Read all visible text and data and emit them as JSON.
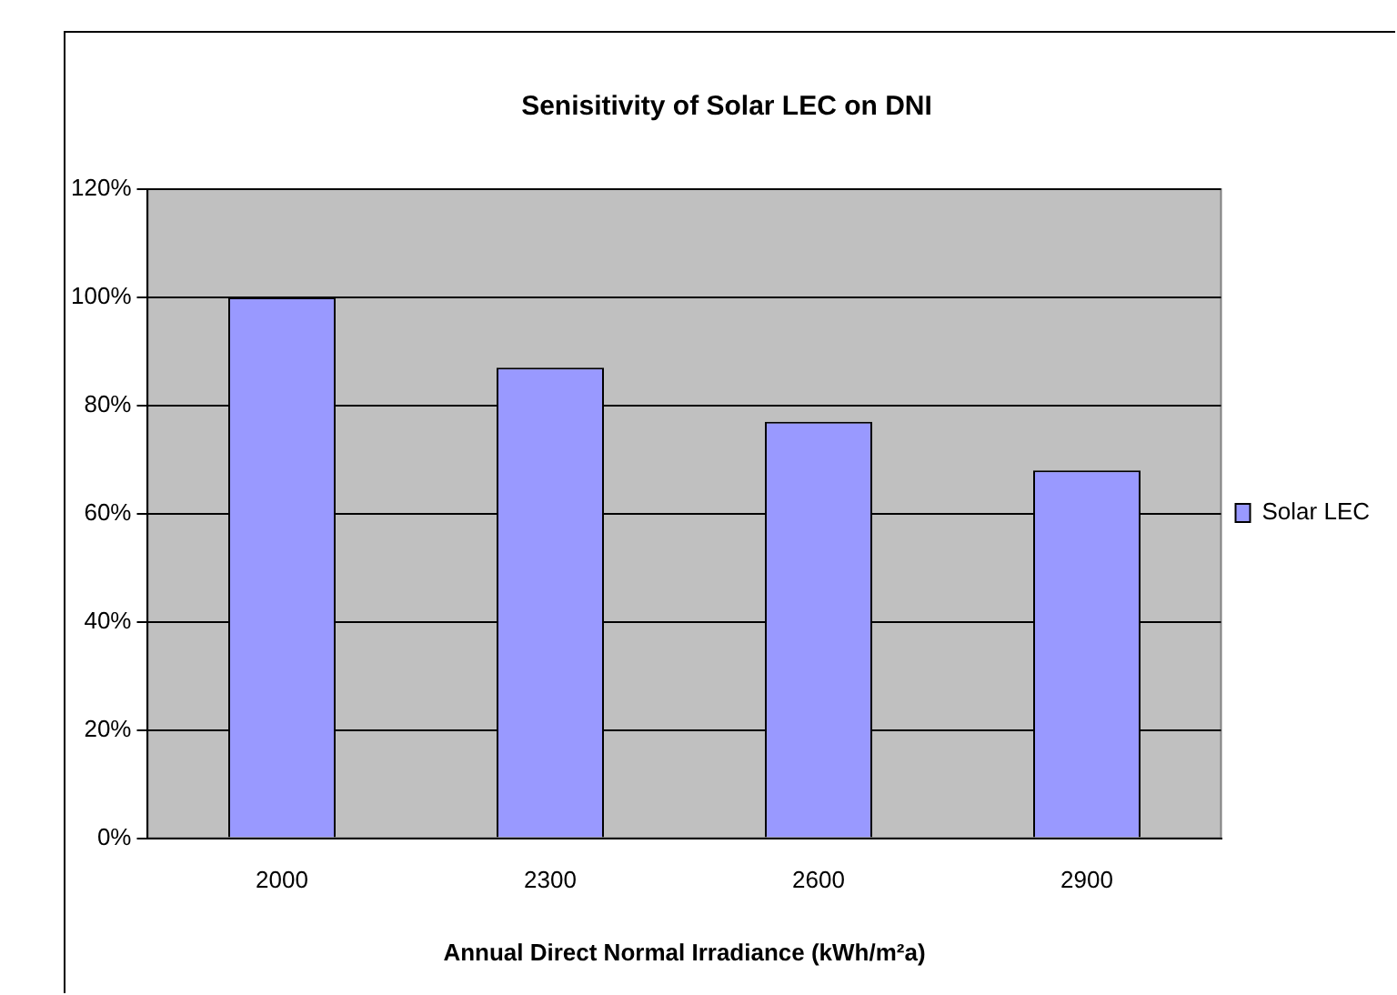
{
  "chart_data": {
    "type": "bar",
    "title": "Senisitivity of Solar LEC on DNI",
    "xlabel": "Annual Direct Normal Irradiance (kWh/m²a)",
    "categories": [
      "2000",
      "2300",
      "2600",
      "2900"
    ],
    "series": [
      {
        "name": "Solar LEC",
        "color": "#9999ff",
        "values": [
          100,
          87,
          77,
          68
        ]
      }
    ],
    "ylim": [
      0,
      120
    ],
    "yticks": [
      {
        "value": 0,
        "label": "0%"
      },
      {
        "value": 20,
        "label": "20%"
      },
      {
        "value": 40,
        "label": "40%"
      },
      {
        "value": 60,
        "label": "60%"
      },
      {
        "value": 80,
        "label": "80%"
      },
      {
        "value": 100,
        "label": "100%"
      },
      {
        "value": 120,
        "label": "120%"
      }
    ],
    "grid": "y",
    "legend": "right"
  }
}
